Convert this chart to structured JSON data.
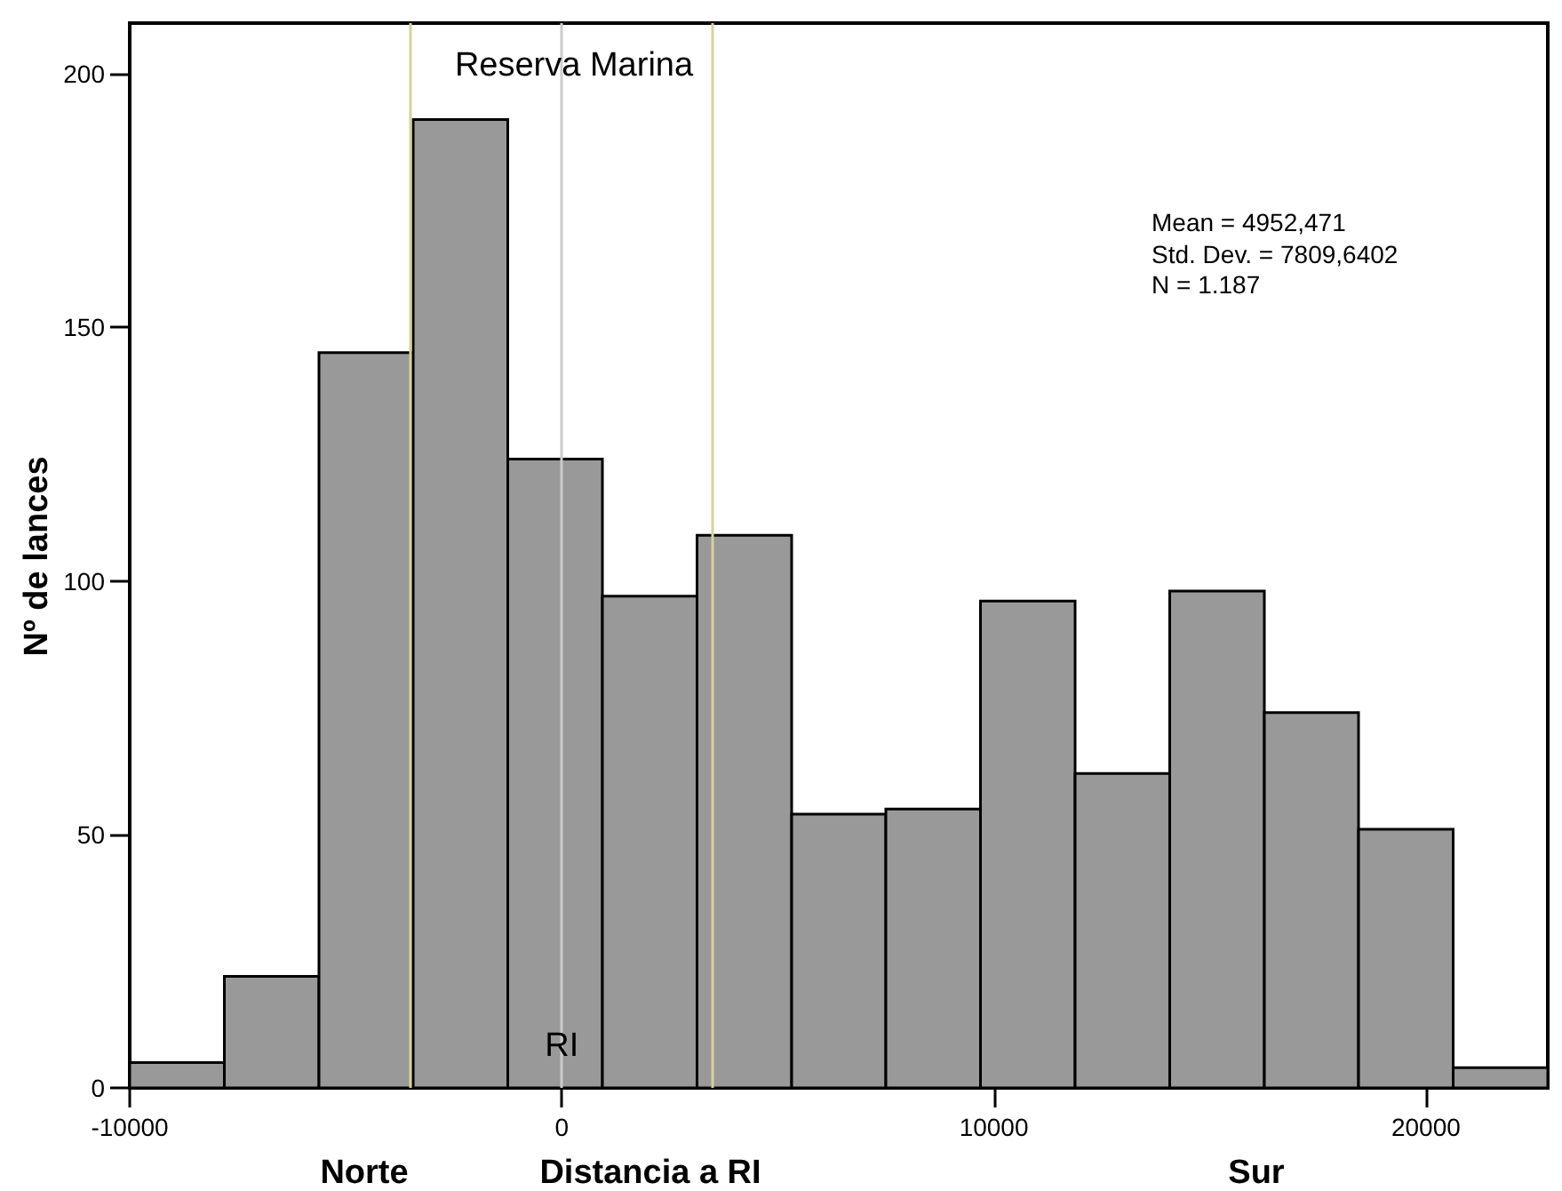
{
  "chart_data": {
    "type": "histogram",
    "xlabel": "Distancia a RI",
    "ylabel": "Nº de lances",
    "bins": [
      -10000,
      -7810,
      -5620,
      -3440,
      -1250,
      940,
      3130,
      5320,
      7500,
      9690,
      11880,
      14070,
      16260,
      18440,
      20630,
      22820
    ],
    "values": [
      5,
      22,
      145,
      191,
      124,
      97,
      109,
      54,
      55,
      96,
      62,
      98,
      74,
      51,
      4
    ],
    "color": "#999999",
    "xlim": [
      -10000,
      22820
    ],
    "xticks": [
      -10000,
      0,
      10000,
      20000
    ],
    "ylim": [
      0,
      210
    ],
    "yticks": [
      0,
      50,
      100,
      150,
      200
    ],
    "ref_lines": [
      {
        "axis": "x",
        "value": -3500,
        "color": "#d8cf9c"
      },
      {
        "axis": "x",
        "value": 0,
        "label": "RI",
        "color": "#cccccc"
      },
      {
        "axis": "x",
        "value": 3500,
        "color": "#d8cf9c"
      }
    ],
    "annotations": [
      "Reserva Marina",
      "Mean = 4952,471",
      "Std. Dev. = 7809,6402",
      "N = 1.187",
      "Norte",
      "Sur"
    ]
  }
}
